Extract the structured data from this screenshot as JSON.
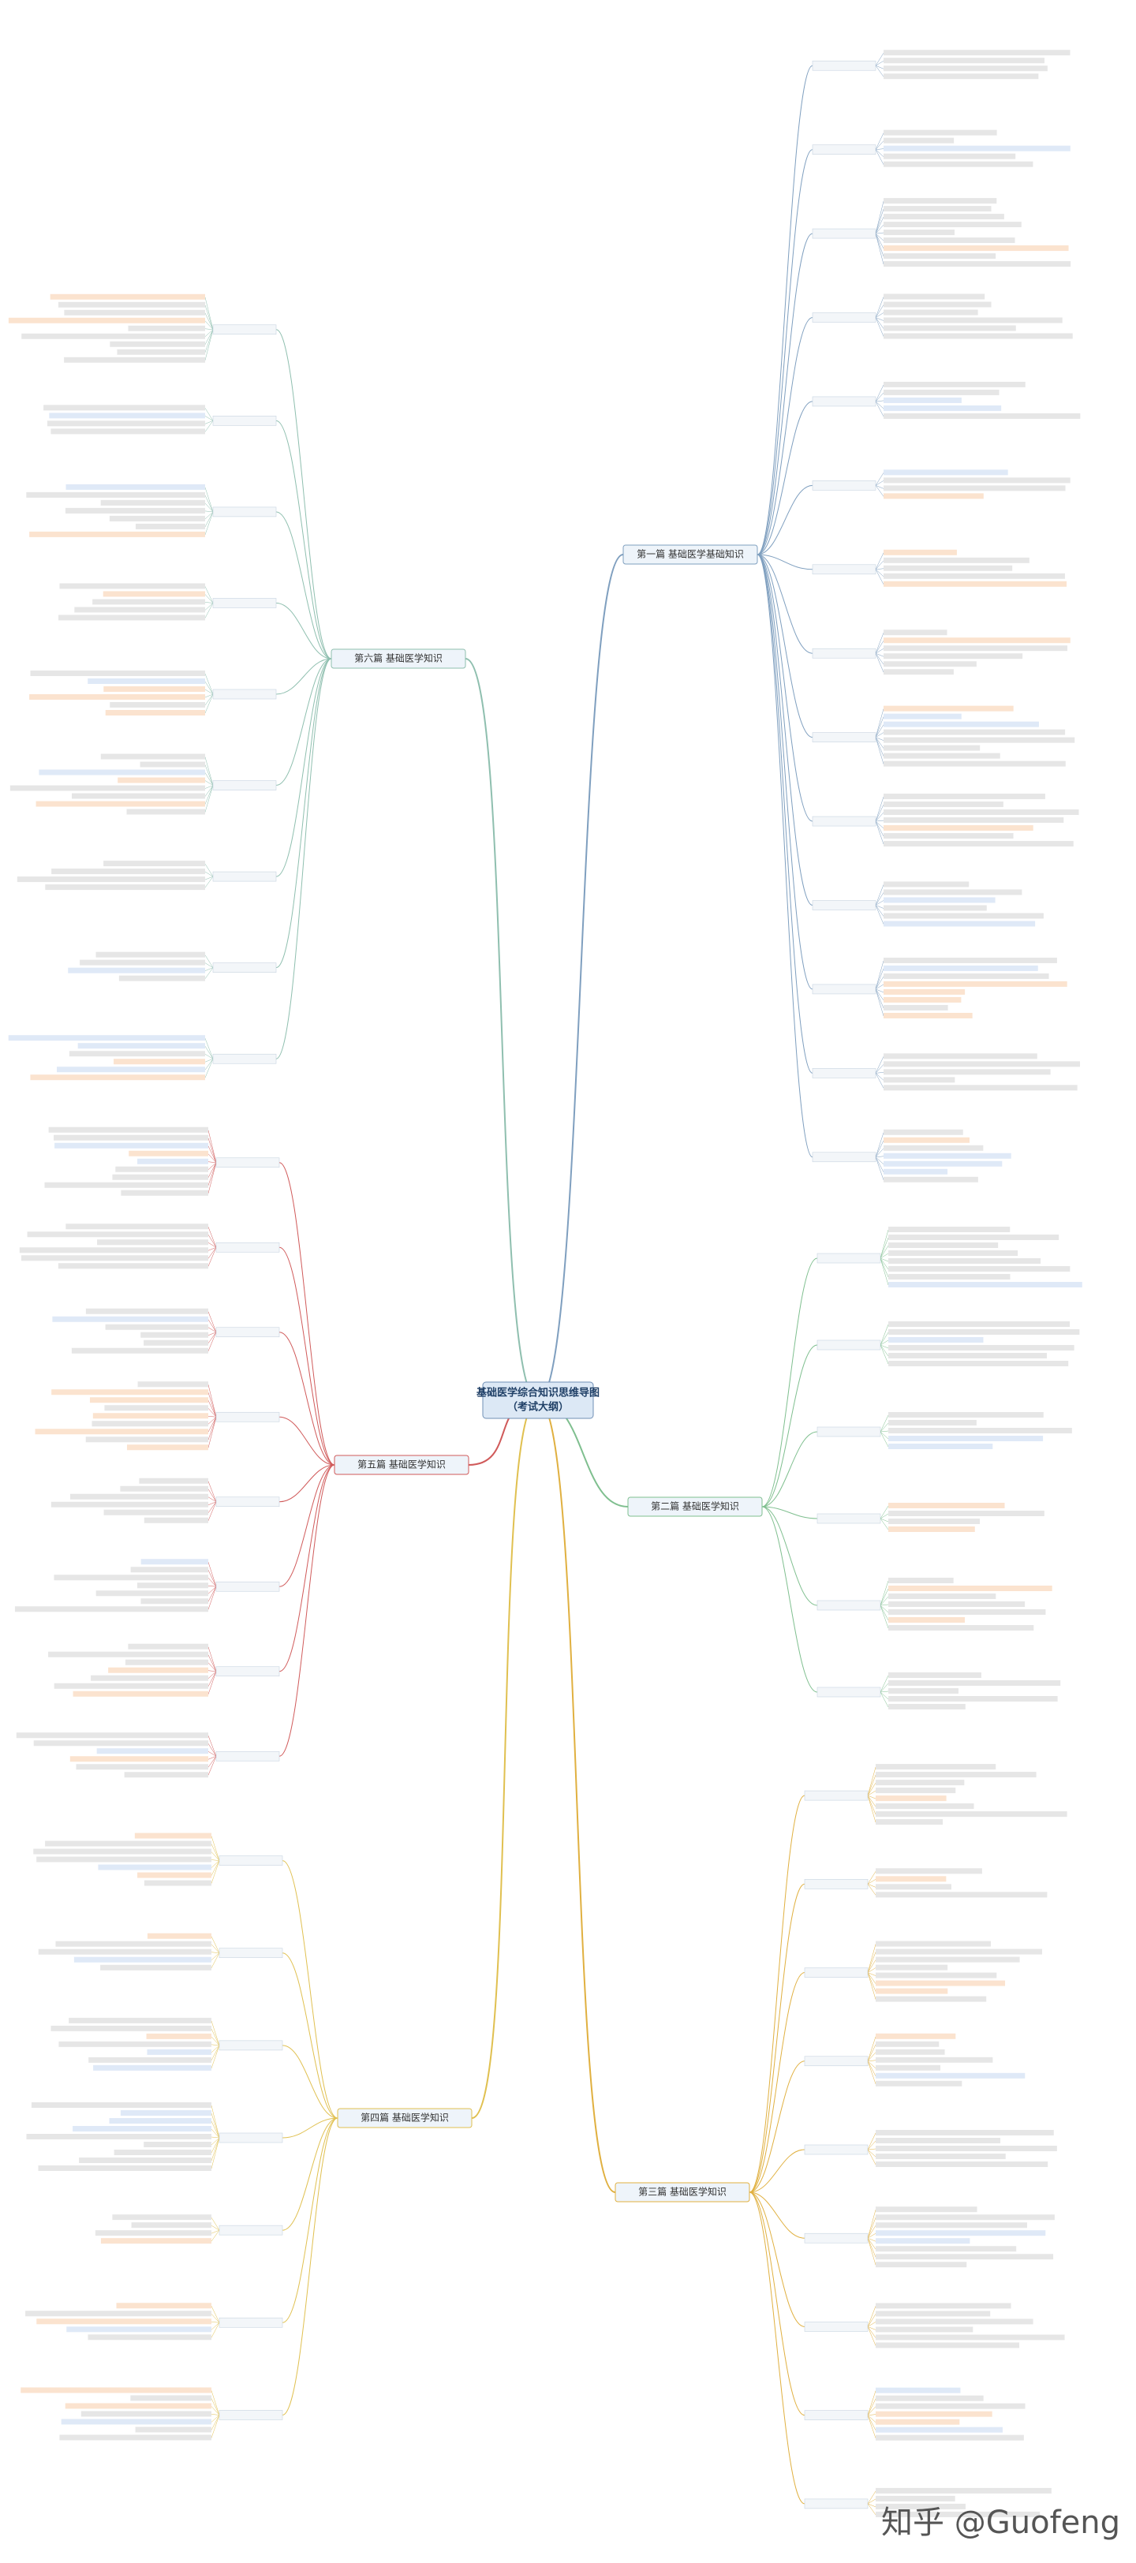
{
  "center": {
    "title": "基础医学综合知识思维导图",
    "subtitle": "（考试大纲）"
  },
  "branches": [
    {
      "label": "第一篇 基础医学基础知识",
      "side": "right",
      "color": "#7f9fbf"
    },
    {
      "label": "第二篇 基础医学知识",
      "side": "right",
      "color": "#7fbf8f"
    },
    {
      "label": "第三篇 基础医学知识",
      "side": "right",
      "color": "#e0b040"
    },
    {
      "label": "第六篇 基础医学知识",
      "side": "left",
      "color": "#8fbfaf"
    },
    {
      "label": "第五篇 基础医学知识",
      "side": "left",
      "color": "#d05a5a"
    },
    {
      "label": "第四篇 基础医学知识",
      "side": "left",
      "color": "#e0c050"
    }
  ],
  "watermark": "知乎 @Guofeng"
}
